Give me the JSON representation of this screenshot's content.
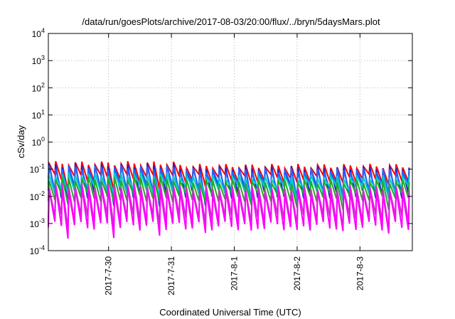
{
  "chart_data": {
    "type": "line",
    "title": "/data/run/goesPlots/archive/2017-08-03/20:00/flux/../bryn/5daysMars.plot",
    "xlabel": "Coordinated Universal Time (UTC)",
    "ylabel": "cSv/day",
    "y_scale": "log",
    "ylim": [
      0.0001,
      10000
    ],
    "y_ticks": [
      {
        "base": "10",
        "exp": "-4"
      },
      {
        "base": "10",
        "exp": "-3"
      },
      {
        "base": "10",
        "exp": "-2"
      },
      {
        "base": "10",
        "exp": "-1"
      },
      {
        "base": "10",
        "exp": "0"
      },
      {
        "base": "10",
        "exp": "1"
      },
      {
        "base": "10",
        "exp": "2"
      },
      {
        "base": "10",
        "exp": "3"
      },
      {
        "base": "10",
        "exp": "4"
      }
    ],
    "xlim": [
      "2017-07-29 01:00",
      "2017-08-03 20:00"
    ],
    "x_ticks": [
      "2017-7-30",
      "2017-7-31",
      "2017-8-1",
      "2017-8-2",
      "2017-8-3"
    ],
    "grid": true,
    "legend": "none",
    "oscillation_period_hours": 2.5,
    "series": [
      {
        "color": "#ff0000",
        "peak": 0.13,
        "trough": 0.045
      },
      {
        "color": "#2222cc",
        "peak": 0.11,
        "trough": 0.012
      },
      {
        "color": "#2266ff",
        "peak": 0.09,
        "trough": 0.02
      },
      {
        "color": "#00cccc",
        "peak": 0.05,
        "trough": 0.018
      },
      {
        "color": "#22aa22",
        "peak": 0.035,
        "trough": 0.009
      },
      {
        "color": "#cc33cc",
        "peak": 0.02,
        "trough": 0.0015
      },
      {
        "color": "#ff00ff",
        "peak": 0.015,
        "trough": 0.0008
      }
    ]
  }
}
